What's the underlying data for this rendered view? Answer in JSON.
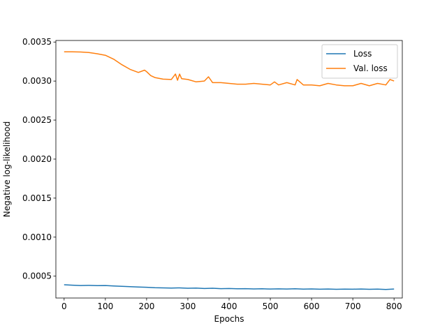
{
  "chart_data": {
    "type": "line",
    "title": "",
    "xlabel": "Epochs",
    "ylabel": "Negative log-likelihood",
    "xlim": [
      -20,
      820
    ],
    "ylim": [
      0.00022,
      0.00352
    ],
    "xticks": [
      0,
      100,
      200,
      300,
      400,
      500,
      600,
      700,
      800
    ],
    "yticks": [
      0.0005,
      0.001,
      0.0015,
      0.002,
      0.0025,
      0.003,
      0.0035
    ],
    "ytick_labels": [
      "0.0005",
      "0.0010",
      "0.0015",
      "0.0020",
      "0.0025",
      "0.0030",
      "0.0035"
    ],
    "grid": false,
    "legend_position": "upper right",
    "series": [
      {
        "name": "Loss",
        "color": "#1f77b4",
        "x": [
          0,
          20,
          40,
          60,
          80,
          100,
          120,
          140,
          160,
          180,
          200,
          220,
          240,
          260,
          280,
          300,
          320,
          340,
          360,
          380,
          400,
          420,
          440,
          460,
          480,
          500,
          520,
          540,
          560,
          580,
          600,
          620,
          640,
          660,
          680,
          700,
          720,
          740,
          760,
          780,
          800
        ],
        "y": [
          0.00039,
          0.000385,
          0.00038,
          0.000382,
          0.000378,
          0.00038,
          0.000375,
          0.00037,
          0.000365,
          0.00036,
          0.000358,
          0.000352,
          0.00035,
          0.000348,
          0.00035,
          0.000345,
          0.000347,
          0.000342,
          0.000345,
          0.00034,
          0.000342,
          0.000338,
          0.00034,
          0.000336,
          0.000338,
          0.000335,
          0.000337,
          0.000335,
          0.000338,
          0.000334,
          0.000336,
          0.000333,
          0.000335,
          0.000332,
          0.000334,
          0.000333,
          0.000335,
          0.000332,
          0.000334,
          0.00033,
          0.000335
        ]
      },
      {
        "name": "Val. loss",
        "color": "#ff7f0e",
        "x": [
          0,
          20,
          40,
          60,
          80,
          100,
          120,
          140,
          160,
          180,
          195,
          200,
          210,
          220,
          240,
          260,
          270,
          275,
          280,
          285,
          300,
          320,
          340,
          350,
          360,
          380,
          400,
          420,
          440,
          460,
          480,
          500,
          510,
          520,
          540,
          560,
          565,
          580,
          600,
          620,
          640,
          660,
          680,
          700,
          720,
          740,
          760,
          780,
          790,
          800
        ],
        "y": [
          0.003375,
          0.003375,
          0.003372,
          0.003365,
          0.00335,
          0.00333,
          0.00328,
          0.00321,
          0.00315,
          0.00311,
          0.00314,
          0.00312,
          0.00307,
          0.003045,
          0.003025,
          0.00302,
          0.00309,
          0.00301,
          0.00309,
          0.00303,
          0.00302,
          0.00299,
          0.003,
          0.003055,
          0.00298,
          0.00298,
          0.00297,
          0.00296,
          0.00296,
          0.00297,
          0.00296,
          0.00295,
          0.00299,
          0.00295,
          0.00298,
          0.00295,
          0.00302,
          0.00295,
          0.00295,
          0.00294,
          0.00297,
          0.00295,
          0.00294,
          0.00294,
          0.00297,
          0.00294,
          0.00297,
          0.00295,
          0.00302,
          0.003
        ]
      }
    ]
  }
}
